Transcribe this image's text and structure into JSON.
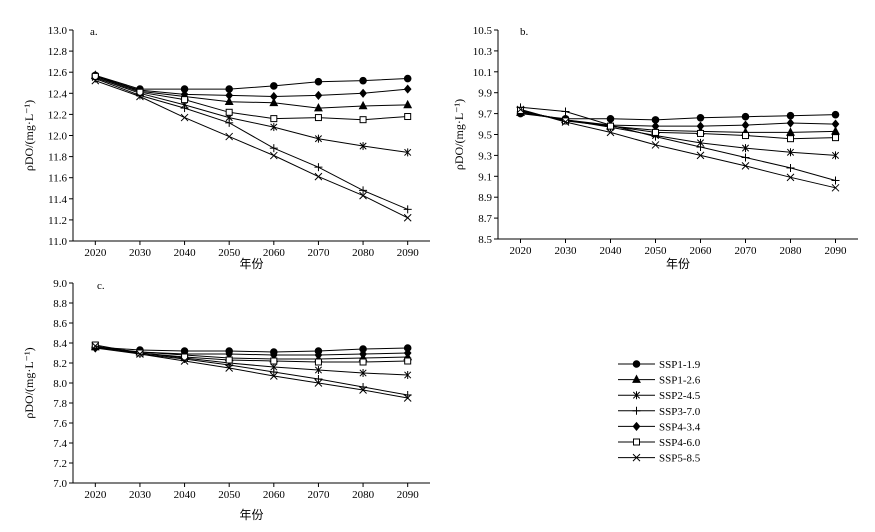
{
  "chart_data": [
    {
      "type": "line",
      "panel_label": "a.",
      "ylabel": "ρDO/(mg·L⁻¹)",
      "xlabel": "年份",
      "xlim": [
        2015,
        2095
      ],
      "ylim": [
        11.0,
        13.0
      ],
      "yticks": [
        "11.0",
        "11.2",
        "11.4",
        "11.6",
        "11.8",
        "12.0",
        "12.2",
        "12.4",
        "12.6",
        "12.8",
        "13.0"
      ],
      "xticks": [
        "2020",
        "2030",
        "2040",
        "2050",
        "2060",
        "2070",
        "2080",
        "2090"
      ],
      "x": [
        2020,
        2030,
        2040,
        2050,
        2060,
        2070,
        2080,
        2090
      ],
      "series": [
        {
          "name": "SSP1-1.9",
          "values": [
            12.57,
            12.44,
            12.44,
            12.44,
            12.47,
            12.51,
            12.52,
            12.54
          ]
        },
        {
          "name": "SSP1-2.6",
          "values": [
            12.57,
            12.42,
            12.37,
            12.32,
            12.31,
            12.26,
            12.28,
            12.29
          ]
        },
        {
          "name": "SSP2-4.5",
          "values": [
            12.55,
            12.4,
            12.29,
            12.17,
            12.08,
            11.97,
            11.9,
            11.84
          ]
        },
        {
          "name": "SSP3-7.0",
          "values": [
            12.54,
            12.38,
            12.26,
            12.12,
            11.88,
            11.7,
            11.48,
            11.3
          ]
        },
        {
          "name": "SSP4-3.4",
          "values": [
            12.56,
            12.43,
            12.39,
            12.38,
            12.37,
            12.38,
            12.4,
            12.44
          ]
        },
        {
          "name": "SSP4-6.0",
          "values": [
            12.56,
            12.41,
            12.34,
            12.22,
            12.16,
            12.17,
            12.15,
            12.18
          ]
        },
        {
          "name": "SSP5-8.5",
          "values": [
            12.52,
            12.37,
            12.17,
            11.99,
            11.81,
            11.61,
            11.43,
            11.22
          ]
        }
      ]
    },
    {
      "type": "line",
      "panel_label": "b.",
      "ylabel": "ρDO/(mg·L⁻¹)",
      "xlabel": "年份",
      "xlim": [
        2015,
        2095
      ],
      "ylim": [
        8.5,
        10.5
      ],
      "yticks": [
        "8.5",
        "8.7",
        "8.9",
        "9.1",
        "9.3",
        "9.5",
        "9.7",
        "9.9",
        "10.1",
        "10.3",
        "10.5"
      ],
      "xticks": [
        "2020",
        "2030",
        "2040",
        "2050",
        "2060",
        "2070",
        "2080",
        "2090"
      ],
      "x": [
        2020,
        2030,
        2040,
        2050,
        2060,
        2070,
        2080,
        2090
      ],
      "series": [
        {
          "name": "SSP1-1.9",
          "values": [
            9.7,
            9.65,
            9.65,
            9.64,
            9.66,
            9.67,
            9.68,
            9.69
          ]
        },
        {
          "name": "SSP1-2.6",
          "values": [
            9.71,
            9.64,
            9.58,
            9.54,
            9.53,
            9.52,
            9.52,
            9.53
          ]
        },
        {
          "name": "SSP2-4.5",
          "values": [
            9.72,
            9.64,
            9.57,
            9.49,
            9.42,
            9.37,
            9.33,
            9.3
          ]
        },
        {
          "name": "SSP3-7.0",
          "values": [
            9.76,
            9.72,
            9.59,
            9.48,
            9.38,
            9.28,
            9.18,
            9.06
          ]
        },
        {
          "name": "SSP4-3.4",
          "values": [
            9.72,
            9.64,
            9.59,
            9.58,
            9.58,
            9.59,
            9.61,
            9.6
          ]
        },
        {
          "name": "SSP4-6.0",
          "values": [
            9.73,
            9.63,
            9.58,
            9.52,
            9.51,
            9.49,
            9.46,
            9.47
          ]
        },
        {
          "name": "SSP5-8.5",
          "values": [
            9.74,
            9.62,
            9.52,
            9.4,
            9.3,
            9.2,
            9.09,
            8.99
          ]
        }
      ]
    },
    {
      "type": "line",
      "panel_label": "c.",
      "ylabel": "ρDO/(mg·L⁻¹)",
      "xlabel": "年份",
      "xlim": [
        2015,
        2095
      ],
      "ylim": [
        7.0,
        9.0
      ],
      "yticks": [
        "7.0",
        "7.2",
        "7.4",
        "7.6",
        "7.8",
        "8.0",
        "8.2",
        "8.4",
        "8.6",
        "8.8",
        "9.0"
      ],
      "xticks": [
        "2020",
        "2030",
        "2040",
        "2050",
        "2060",
        "2070",
        "2080",
        "2090"
      ],
      "x": [
        2020,
        2030,
        2040,
        2050,
        2060,
        2070,
        2080,
        2090
      ],
      "series": [
        {
          "name": "SSP1-1.9",
          "values": [
            8.36,
            8.33,
            8.32,
            8.32,
            8.31,
            8.32,
            8.34,
            8.35
          ]
        },
        {
          "name": "SSP1-2.6",
          "values": [
            8.36,
            8.31,
            8.28,
            8.25,
            8.24,
            8.24,
            8.25,
            8.26
          ]
        },
        {
          "name": "SSP2-4.5",
          "values": [
            8.36,
            8.3,
            8.25,
            8.2,
            8.16,
            8.13,
            8.1,
            8.08
          ]
        },
        {
          "name": "SSP3-7.0",
          "values": [
            8.35,
            8.29,
            8.24,
            8.18,
            8.11,
            8.04,
            7.96,
            7.88
          ]
        },
        {
          "name": "SSP4-3.4",
          "values": [
            8.35,
            8.31,
            8.29,
            8.29,
            8.28,
            8.28,
            8.29,
            8.3
          ]
        },
        {
          "name": "SSP4-6.0",
          "values": [
            8.38,
            8.3,
            8.26,
            8.23,
            8.22,
            8.21,
            8.21,
            8.22
          ]
        },
        {
          "name": "SSP5-8.5",
          "values": [
            8.37,
            8.29,
            8.22,
            8.15,
            8.07,
            8.0,
            7.93,
            7.85
          ]
        }
      ]
    }
  ],
  "legend": [
    {
      "name": "SSP1-1.9",
      "marker": "circle-filled"
    },
    {
      "name": "SSP1-2.6",
      "marker": "triangle-filled"
    },
    {
      "name": "SSP2-4.5",
      "marker": "asterisk"
    },
    {
      "name": "SSP3-7.0",
      "marker": "plus"
    },
    {
      "name": "SSP4-3.4",
      "marker": "diamond-filled"
    },
    {
      "name": "SSP4-6.0",
      "marker": "square-open"
    },
    {
      "name": "SSP5-8.5",
      "marker": "x-cross"
    }
  ],
  "colors": {
    "ink": "#000000",
    "background": "#ffffff"
  }
}
